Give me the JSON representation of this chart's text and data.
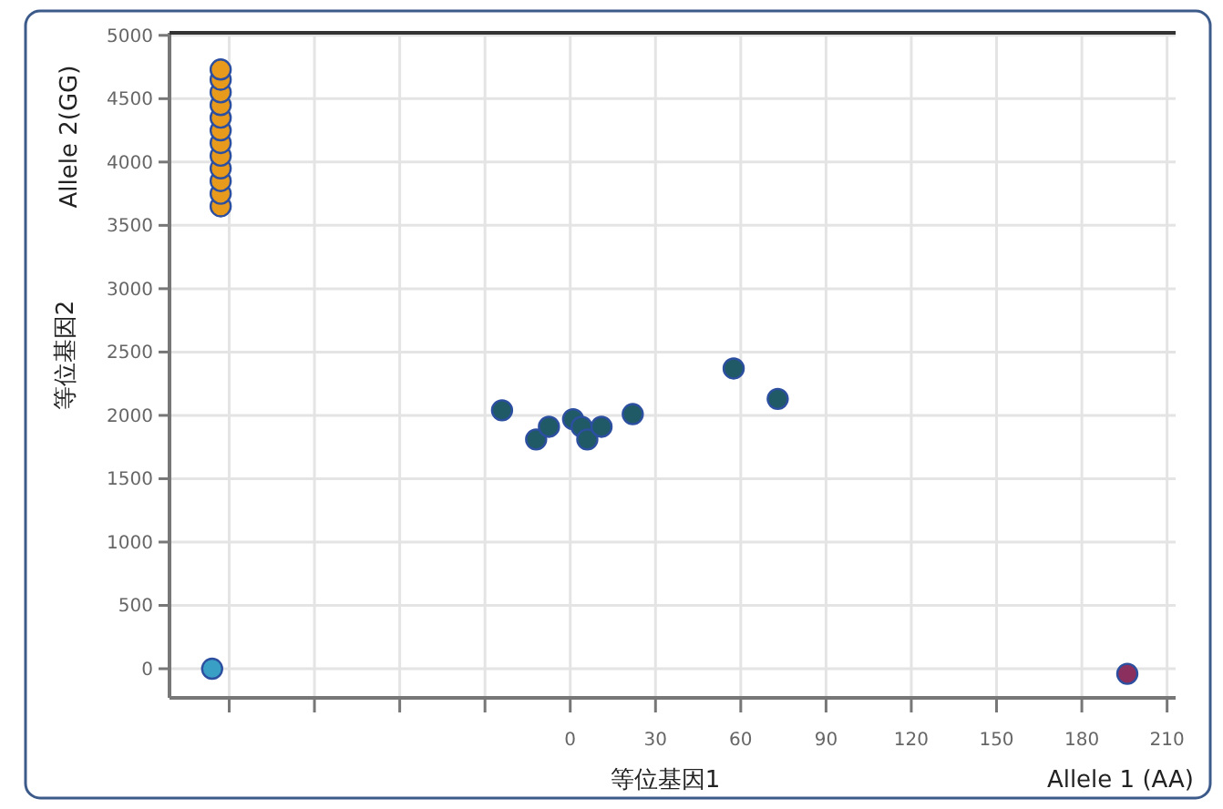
{
  "chart_data": {
    "type": "scatter",
    "xlabel": "等位基因1",
    "ylabel": "等位基因2",
    "annotations": [
      "Allele 2(GG)",
      "Allele 1 (AA)"
    ],
    "xlim": [
      -141,
      213
    ],
    "ylim": [
      -230,
      5020
    ],
    "xticks": [
      {
        "value": -120,
        "label": null
      },
      {
        "value": -90,
        "label": null
      },
      {
        "value": -60,
        "label": null
      },
      {
        "value": -30,
        "label": null
      },
      0,
      30,
      60,
      90,
      120,
      150,
      180,
      210
    ],
    "yticks": [
      0,
      500,
      1000,
      1500,
      2000,
      2500,
      3000,
      3500,
      4000,
      4500,
      5000
    ],
    "grid": true,
    "marker": "circle",
    "series": [
      {
        "color": "#e89a1c",
        "x": [
          -123,
          -123,
          -123,
          -123,
          -123,
          -123,
          -123,
          -123,
          -123,
          -123,
          -123,
          -123
        ],
        "values": [
          3650,
          3750,
          3850,
          3950,
          4050,
          4150,
          4250,
          4350,
          4450,
          4550,
          4650,
          4730
        ]
      },
      {
        "color": "#3a9fc4",
        "x": [
          -126
        ],
        "values": [
          0
        ]
      },
      {
        "color": "#8b2f5f",
        "x": [
          196
        ],
        "values": [
          -40
        ]
      },
      {
        "color": "#1f5a66",
        "x": [
          -24,
          -12,
          -7.5,
          1,
          4,
          6,
          11,
          22,
          57.5,
          73
        ],
        "values": [
          2040,
          1810,
          1910,
          1970,
          1910,
          1810,
          1910,
          2010,
          2370,
          2130
        ]
      }
    ]
  }
}
